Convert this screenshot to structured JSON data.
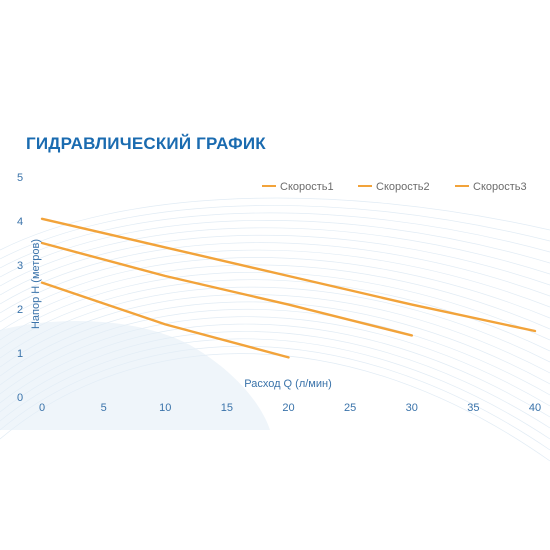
{
  "chart_data": {
    "type": "line",
    "title": "ГИДРАВЛИЧЕСКИЙ ГРАФИК",
    "xlabel": "Расход Q (л/мин)",
    "ylabel": "Напор H (метров)",
    "xlim": [
      0,
      40
    ],
    "ylim": [
      0,
      5
    ],
    "xticks": [
      0,
      5,
      10,
      15,
      20,
      25,
      30,
      35,
      40
    ],
    "yticks": [
      0,
      1,
      2,
      3,
      4,
      5
    ],
    "grid": false,
    "legend_position": "top-right",
    "series_color": "#f2a33a",
    "series": [
      {
        "name": "Скорость1",
        "x": [
          0,
          10,
          20
        ],
        "y": [
          2.6,
          1.65,
          0.9
        ]
      },
      {
        "name": "Скорость2",
        "x": [
          0,
          10,
          20,
          30
        ],
        "y": [
          3.5,
          2.75,
          2.1,
          1.4
        ]
      },
      {
        "name": "Скорость3",
        "x": [
          0,
          10,
          20,
          30,
          40
        ],
        "y": [
          4.05,
          3.4,
          2.75,
          2.1,
          1.5
        ]
      }
    ]
  }
}
